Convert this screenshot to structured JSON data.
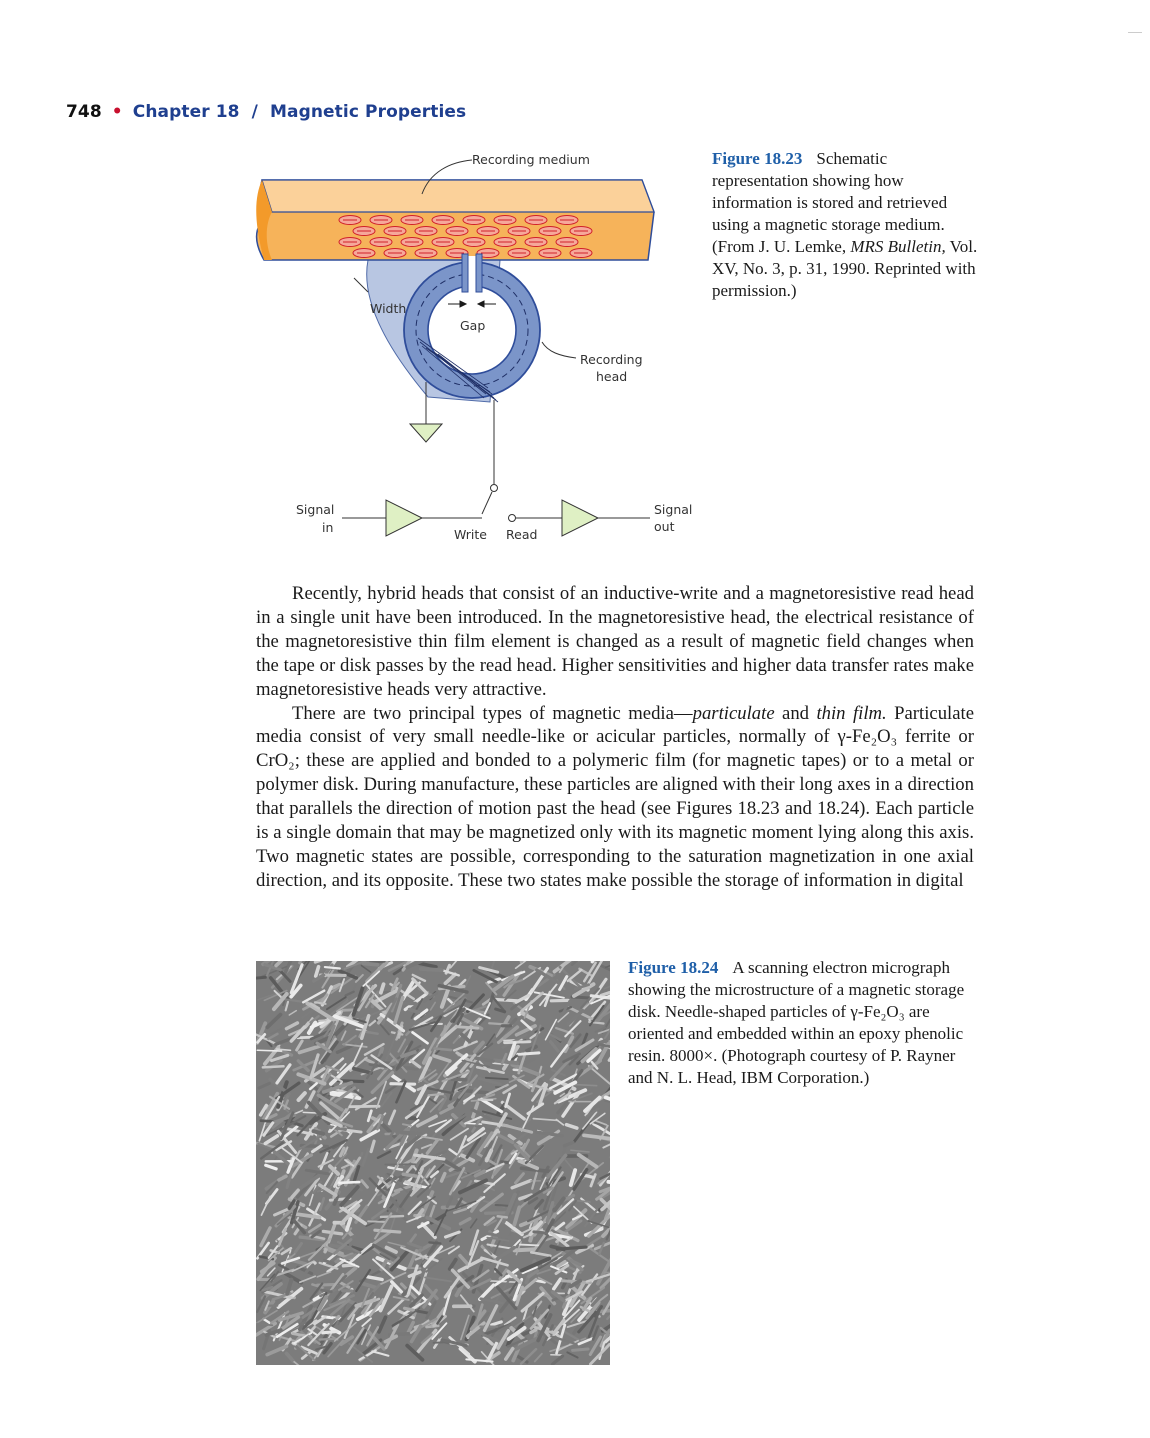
{
  "header": {
    "page_number": "748",
    "chapter": "Chapter 18  /  Magnetic Properties"
  },
  "figure_18_23": {
    "labels": {
      "recording_medium": "Recording medium",
      "width": "Width",
      "gap": "Gap",
      "recording_head_1": "Recording",
      "recording_head_2": "head",
      "signal_in_1": "Signal",
      "signal_in_2": "in",
      "signal_out_1": "Signal",
      "signal_out_2": "out",
      "write": "Write",
      "read": "Read"
    },
    "caption_label": "Figure 18.23",
    "caption_text_1": "Schematic representation showing how information is stored and retrieved using a magnetic storage medium. (From J. U. Lemke, ",
    "caption_italic": "MRS Bulletin,",
    "caption_text_2": " Vol. XV, No. 3, p. 31, 1990. Reprinted with permission.)"
  },
  "body": {
    "p1": "Recently, hybrid heads that consist of an inductive-write and a magnetoresistive read head in a single unit have been introduced. In the magnetoresistive head, the electrical resistance of the magnetoresistive thin film element is changed as a result of magnetic field changes when the tape or disk passes by the read head. Higher sensitivities and higher data transfer rates make magnetoresistive heads very attractive.",
    "p2_a": "There are two principal types of magnetic media—",
    "p2_italic_1": "particulate",
    "p2_b": " and ",
    "p2_italic_2": "thin film.",
    "p2_c": " Particulate media consist of very small needle-like or acicular particles, normally of γ-Fe₂O₃ ferrite or CrO₂; these are applied and bonded to a polymeric film (for magnetic tapes) or to a metal or polymer disk. During manufacture, these particles are aligned with their long axes in a direction that parallels the direction of motion past the head (see Figures 18.23 and 18.24). Each particle is a single domain that may be magnetized only with its magnetic moment lying along this axis. Two magnetic states are possible, corresponding to the saturation magnetization in one axial direction, and its opposite. These two states make possible the storage of information in digital"
  },
  "figure_18_24": {
    "caption_label": "Figure 18.24",
    "caption_text": "A scanning electron micrograph showing the microstructure of a magnetic storage disk. Needle-shaped particles of γ-Fe₂O₃ are oriented and embedded within an epoxy phenolic resin. 8000×. (Photograph courtesy of P. Rayner and N. L. Head, IBM Corporation.)"
  },
  "colors": {
    "chapter_blue": "#1f3f8f",
    "bullet_red": "#c8102e",
    "figure_label_blue": "#1f5fa8",
    "tape_orange": "#f6b35a",
    "head_blue": "#7b95c9"
  }
}
